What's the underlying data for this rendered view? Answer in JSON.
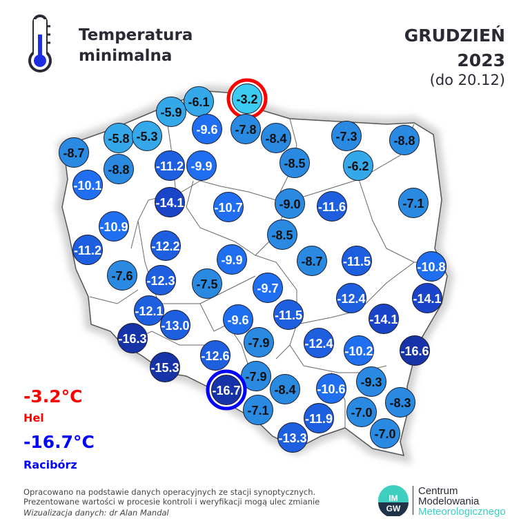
{
  "header": {
    "title_line1": "Temperatura",
    "title_line2": "minimalna",
    "month": "GRUDZIEŃ",
    "year": "2023",
    "range": "(do 20.12)"
  },
  "extremes": {
    "max": {
      "value": "-3.2°C",
      "station": "Hel",
      "color": "#ff0000"
    },
    "min": {
      "value": "-16.7°C",
      "station": "Racibórz",
      "color": "#0000ff"
    }
  },
  "stations": [
    -3.2,
    -6.1,
    -5.9,
    -9.6,
    -7.8,
    -8.4,
    -7.3,
    -8.8,
    -5.8,
    -5.3,
    -8.7,
    -8.8,
    -11.2,
    -9.9,
    -8.5,
    -6.2,
    -10.1,
    -14.1,
    -10.7,
    -9.0,
    -11.6,
    -7.1,
    -10.9,
    -11.2,
    -12.2,
    -8.5,
    -9.9,
    -8.7,
    -11.5,
    -10.8,
    -7.6,
    -12.3,
    -7.5,
    -9.7,
    -12.4,
    -14.1,
    -12.1,
    -13.0,
    -9.6,
    -11.5,
    -14.1,
    -16.3,
    -7.9,
    -12.4,
    -10.2,
    -16.6,
    -15.3,
    -12.6,
    -7.9,
    -16.7,
    -8.4,
    -10.6,
    -9.3,
    -7.1,
    -7.0,
    -8.3,
    -11.9,
    -13.3,
    -7.0
  ],
  "footer": {
    "line1": "Opracowano na podstawie danych operacyjnych ze stacji synoptycznych.",
    "line2": "Prezentowane wartości w procesie kontroli i weryfikacji mogą ulec zmianie",
    "line3": "Wizualizacja danych: dr Alan Mandal"
  },
  "logo": {
    "line1": "Centrum",
    "line2": "Modelowania",
    "line3": "Meteorologicznego",
    "mark": "IMGW"
  },
  "icons": {
    "header": "thermometer-icon"
  }
}
